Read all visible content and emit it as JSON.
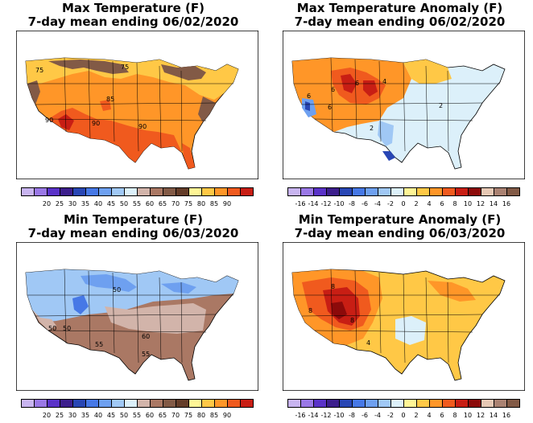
{
  "panels": [
    {
      "id": "max-temp",
      "title_line1": "Max Temperature (F)",
      "title_line2": "7-day mean ending 06/02/2020",
      "legend": {
        "colors": [
          "#c8b4f0",
          "#9a78e6",
          "#5a32c8",
          "#3c1e8c",
          "#2846b4",
          "#4678e6",
          "#6ea0f0",
          "#a0c8f5",
          "#dcf0fa",
          "#d2b4aa",
          "#aa7864",
          "#825a46",
          "#643c28",
          "#fff596",
          "#ffc846",
          "#ff9628",
          "#f05a1e",
          "#c81e14"
        ],
        "ticks": [
          "20",
          "25",
          "30",
          "35",
          "40",
          "45",
          "50",
          "55",
          "60",
          "65",
          "70",
          "75",
          "80",
          "85",
          "90"
        ]
      },
      "contour_labels": [
        "75",
        "75",
        "85",
        "90",
        "90",
        "90"
      ]
    },
    {
      "id": "max-temp-anomaly",
      "title_line1": "Max Temperature Anomaly (F)",
      "title_line2": "7-day mean ending 06/02/2020",
      "legend": {
        "colors": [
          "#c8b4f0",
          "#9a78e6",
          "#5a32c8",
          "#3c1e8c",
          "#2846b4",
          "#4678e6",
          "#6ea0f0",
          "#a0c8f5",
          "#dcf0fa",
          "#fff596",
          "#ffc846",
          "#ff9628",
          "#f05a1e",
          "#c81e14",
          "#8c0a0a",
          "#e6c8b4",
          "#aa8272",
          "#825a46"
        ],
        "ticks": [
          "-16",
          "-14",
          "-12",
          "-10",
          "-8",
          "-6",
          "-4",
          "-2",
          "0",
          "2",
          "4",
          "6",
          "8",
          "10",
          "12",
          "14",
          "16"
        ]
      },
      "contour_labels": [
        "6",
        "6",
        "6",
        "4",
        "2",
        "2",
        "6"
      ]
    },
    {
      "id": "min-temp",
      "title_line1": "Min Temperature (F)",
      "title_line2": "7-day mean ending 06/03/2020",
      "legend": {
        "colors": [
          "#c8b4f0",
          "#9a78e6",
          "#5a32c8",
          "#3c1e8c",
          "#2846b4",
          "#4678e6",
          "#6ea0f0",
          "#a0c8f5",
          "#dcf0fa",
          "#d2b4aa",
          "#aa7864",
          "#825a46",
          "#643c28",
          "#fff596",
          "#ffc846",
          "#ff9628",
          "#f05a1e",
          "#c81e14"
        ],
        "ticks": [
          "20",
          "25",
          "30",
          "35",
          "40",
          "45",
          "50",
          "55",
          "60",
          "65",
          "70",
          "75",
          "80",
          "85",
          "90"
        ]
      },
      "contour_labels": [
        "50",
        "50",
        "50",
        "55",
        "60",
        "55"
      ]
    },
    {
      "id": "min-temp-anomaly",
      "title_line1": "Min Temperature Anomaly (F)",
      "title_line2": "7-day mean ending 06/03/2020",
      "legend": {
        "colors": [
          "#c8b4f0",
          "#9a78e6",
          "#5a32c8",
          "#3c1e8c",
          "#2846b4",
          "#4678e6",
          "#6ea0f0",
          "#a0c8f5",
          "#dcf0fa",
          "#fff596",
          "#ffc846",
          "#ff9628",
          "#f05a1e",
          "#c81e14",
          "#8c0a0a",
          "#e6c8b4",
          "#aa8272",
          "#825a46"
        ],
        "ticks": [
          "-16",
          "-14",
          "-12",
          "-10",
          "-8",
          "-6",
          "-4",
          "-2",
          "0",
          "2",
          "4",
          "6",
          "8",
          "10",
          "12",
          "14",
          "16"
        ]
      },
      "contour_labels": [
        "8",
        "8",
        "8",
        "4"
      ]
    }
  ]
}
